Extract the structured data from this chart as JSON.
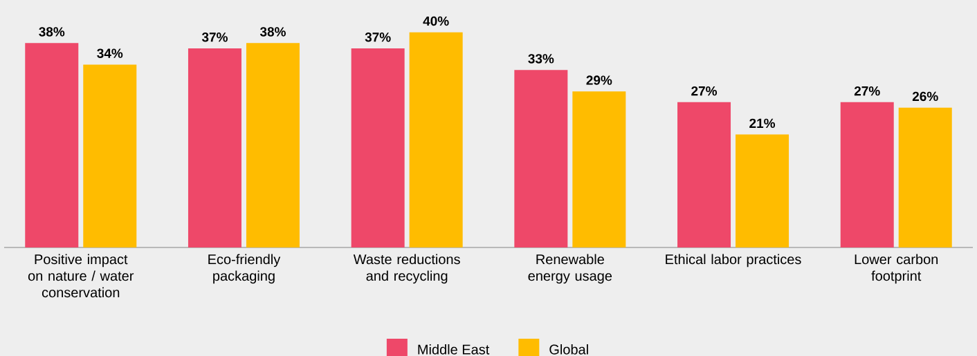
{
  "chart_data": {
    "type": "bar",
    "categories": [
      "Positive impact on nature / water conservation",
      "Eco-friendly packaging",
      "Waste reductions and recycling",
      "Renewable energy usage",
      "Ethical labor practices",
      "Lower carbon footprint"
    ],
    "series": [
      {
        "name": "Middle East",
        "color": "#ee4869",
        "values": [
          38,
          37,
          37,
          33,
          27,
          27
        ],
        "value_labels": [
          "38%",
          "37%",
          "37%",
          "33%",
          "27%",
          "27%"
        ]
      },
      {
        "name": "Global",
        "color": "#ffbc00",
        "values": [
          34,
          38,
          40,
          29,
          21,
          26
        ],
        "value_labels": [
          "34%",
          "38%",
          "40%",
          "29%",
          "21%",
          "26%"
        ]
      }
    ],
    "legend": "bottom"
  }
}
